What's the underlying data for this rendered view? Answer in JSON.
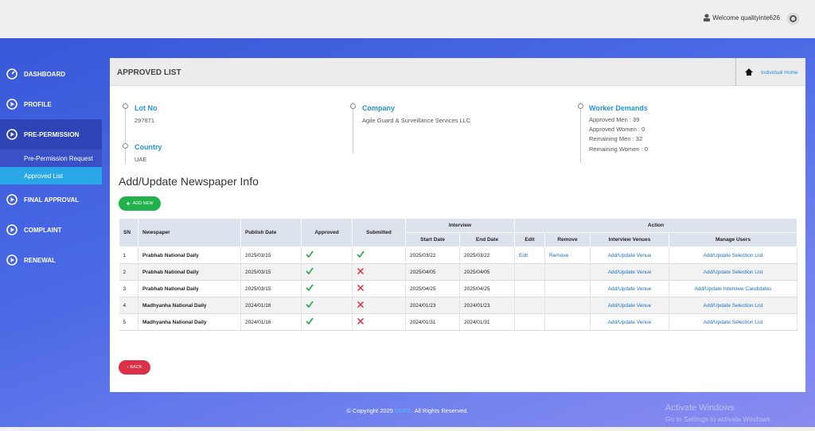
{
  "header": {
    "welcome": "Welcome qualityinte626"
  },
  "sidebar": {
    "items": [
      {
        "label": "DASHBOARD"
      },
      {
        "label": "PROFILE"
      },
      {
        "label": "PRE-PERMISSION",
        "active": true,
        "children": [
          {
            "label": "Pre-Permission Request"
          },
          {
            "label": "Approved List",
            "active": true
          }
        ]
      },
      {
        "label": "FINAL APPROVAL"
      },
      {
        "label": "COMPLAINT"
      },
      {
        "label": "RENEWAL"
      }
    ]
  },
  "panel": {
    "title": "APPROVED LIST",
    "home_link": "Individual Home"
  },
  "info": {
    "lot_no": {
      "label": "Lot No",
      "value": "297871"
    },
    "country": {
      "label": "Country",
      "value": "UAE"
    },
    "company": {
      "label": "Company",
      "value": "Agile Guard & Surveillance Services LLC"
    },
    "worker_demands": {
      "label": "Worker Demands",
      "lines": [
        "Approved Men : 39",
        "Approved Women : 0",
        "Remaining Men : 32",
        "Remaining Women : 0"
      ]
    }
  },
  "section_title": "Add/Update Newspaper Info",
  "add_button": "ADD NEW",
  "table": {
    "group_headers": {
      "interview": "Interview",
      "action": "Action"
    },
    "headers": {
      "sn": "SN",
      "newspaper": "Newspaper",
      "publish_date": "Publish Date",
      "approved": "Approved",
      "submitted": "Submitted",
      "start_date": "Start Date",
      "end_date": "End Date",
      "edit": "Edit",
      "remove": "Remove",
      "venue": "Interview Venues",
      "users": "Manage Users"
    },
    "rows": [
      {
        "sn": 1,
        "newspaper": "Prabhab National Daily",
        "publish_date": "2025/03/15",
        "approved": true,
        "submitted": true,
        "start_date": "2025/03/22",
        "end_date": "2025/03/22",
        "edit": "Edit",
        "remove": "Remove",
        "venue": "Add/Update Venue",
        "users": "Add/Update Selection List"
      },
      {
        "sn": 2,
        "newspaper": "Prabhab National Daily",
        "publish_date": "2025/03/15",
        "approved": true,
        "submitted": false,
        "start_date": "2025/04/05",
        "end_date": "2025/04/05",
        "edit": null,
        "remove": null,
        "venue": "Add/Update Venue",
        "users": "Add/Update Selection List"
      },
      {
        "sn": 3,
        "newspaper": "Prabhab National Daily",
        "publish_date": "2025/03/15",
        "approved": true,
        "submitted": false,
        "start_date": "2025/04/25",
        "end_date": "2025/04/25",
        "edit": null,
        "remove": null,
        "venue": "Add/Update Venue",
        "users": "Add/Update Interview Candidates"
      },
      {
        "sn": 4,
        "newspaper": "Madhyanha National Daily",
        "publish_date": "2024/01/16",
        "approved": true,
        "submitted": false,
        "start_date": "2024/01/23",
        "end_date": "2024/01/23",
        "edit": null,
        "remove": null,
        "venue": "Add/Update Venue",
        "users": "Add/Update Selection List"
      },
      {
        "sn": 5,
        "newspaper": "Madhyanha National Daily",
        "publish_date": "2024/01/16",
        "approved": true,
        "submitted": false,
        "start_date": "2024/01/31",
        "end_date": "2024/01/31",
        "edit": null,
        "remove": null,
        "venue": "Add/Update Venue",
        "users": "Add/Update Selection List"
      }
    ]
  },
  "back_button": "BACK",
  "footer": {
    "copyright": "© Copyright 2025",
    "org": "DOFE",
    "rights": ". All Rights Reserved."
  },
  "watermark": {
    "title": "Activate Windows",
    "subtitle": "Go to Settings to activate Windows."
  }
}
